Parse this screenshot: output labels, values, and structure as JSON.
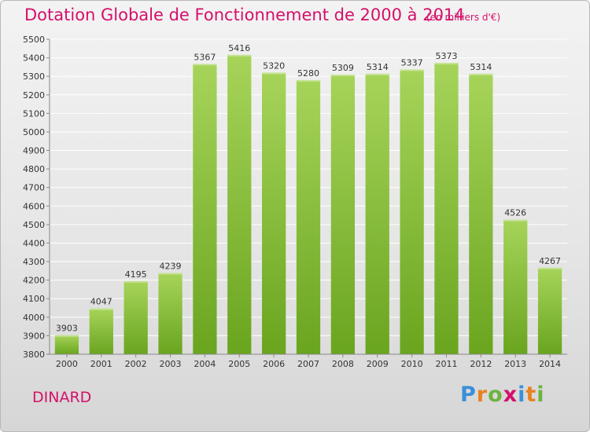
{
  "chart_data": {
    "type": "bar",
    "title": "Dotation Globale de Fonctionnement de 2000 à 2014",
    "subtitle": "(en milliers d'€)",
    "categories": [
      "2000",
      "2001",
      "2002",
      "2003",
      "2004",
      "2005",
      "2006",
      "2007",
      "2008",
      "2009",
      "2010",
      "2011",
      "2012",
      "2013",
      "2014"
    ],
    "values": [
      3903,
      4047,
      4195,
      4239,
      5367,
      5416,
      5320,
      5280,
      5309,
      5314,
      5337,
      5373,
      5314,
      4526,
      4267
    ],
    "data_labels": [
      "3903",
      "4047",
      "4195",
      "4239",
      "5367",
      "5416",
      "5320",
      "5280",
      "5309",
      "5314",
      "5337",
      "5373",
      "5314",
      "4526",
      "4267"
    ],
    "ylim": [
      3800,
      5500
    ],
    "yticks": [
      3800,
      3900,
      4000,
      4100,
      4200,
      4300,
      4400,
      4500,
      4600,
      4700,
      4800,
      4900,
      5000,
      5100,
      5200,
      5300,
      5400,
      5500
    ],
    "ytick_labels": [
      "3800",
      "3900",
      "4000",
      "4100",
      "4200",
      "4300",
      "4400",
      "4500",
      "4600",
      "4700",
      "4800",
      "4900",
      "5000",
      "5100",
      "5200",
      "5300",
      "5400",
      "5500"
    ],
    "xlabel": "",
    "ylabel": "",
    "grid": true,
    "colors": {
      "bar_light": "#a6d45a",
      "bar_dark": "#6aa51f",
      "grid": "#ffffff",
      "text": "#333333",
      "accent": "#d4106a"
    }
  },
  "footer": {
    "city": "DINARD",
    "logo_letters": [
      "P",
      "r",
      "o",
      "x",
      "i",
      "t",
      "i"
    ],
    "logo_colors": [
      "#3b8fd8",
      "#e8811f",
      "#6cb33f",
      "#d4106a",
      "#3b8fd8",
      "#e8811f",
      "#6cb33f"
    ]
  }
}
